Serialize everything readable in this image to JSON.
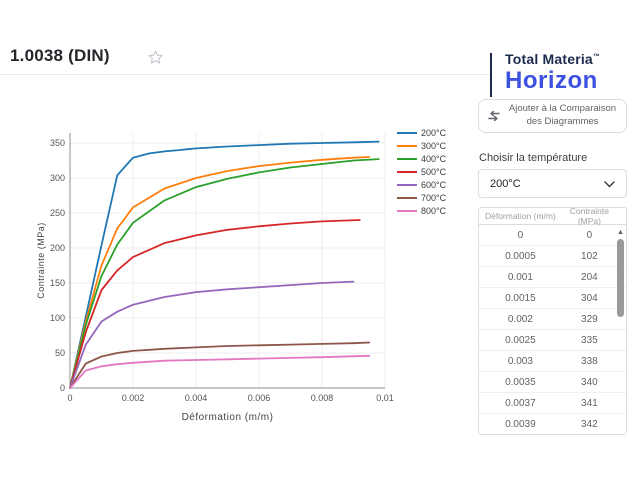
{
  "header": {
    "title": "1.0038 (DIN)"
  },
  "logo": {
    "line1": "Total Materia",
    "tm": "™",
    "line2": "Horizon",
    "navy": "#1b2a4e",
    "blue": "#3d52e0"
  },
  "panel": {
    "compare_button": {
      "label": "Ajouter à la Comparaison des Diagrammes"
    },
    "temperature_label": "Choisir la température",
    "temperature_select": {
      "value": "200°C"
    },
    "table": {
      "columns": [
        "Déformation (m/m)",
        "Contrainte (MPa)"
      ],
      "rows": [
        [
          "0",
          "0"
        ],
        [
          "0.0005",
          "102"
        ],
        [
          "0.001",
          "204"
        ],
        [
          "0.0015",
          "304"
        ],
        [
          "0.002",
          "329"
        ],
        [
          "0.0025",
          "335"
        ],
        [
          "0.003",
          "338"
        ],
        [
          "0.0035",
          "340"
        ],
        [
          "0.0037",
          "341"
        ],
        [
          "0.0039",
          "342"
        ]
      ]
    }
  },
  "chart_data": {
    "type": "line",
    "title": "",
    "xlabel": "Déformation (m/m)",
    "ylabel": "Contrainte (MPa)",
    "xlim": [
      0,
      0.01
    ],
    "ylim": [
      0,
      350
    ],
    "x_ticks": [
      0,
      0.002,
      0.004,
      0.006,
      0.008,
      0.01
    ],
    "x_tick_labels": [
      "0",
      "0.002",
      "0.004",
      "0.006",
      "0.008",
      "0.01"
    ],
    "y_ticks": [
      0,
      50,
      100,
      150,
      200,
      250,
      300,
      350
    ],
    "grid": true,
    "legend_position": "right-top",
    "series": [
      {
        "name": "200°C",
        "color": "#1f77b4",
        "points": [
          [
            0,
            0
          ],
          [
            0.0005,
            102
          ],
          [
            0.001,
            204
          ],
          [
            0.0015,
            304
          ],
          [
            0.002,
            329
          ],
          [
            0.0025,
            335
          ],
          [
            0.003,
            338
          ],
          [
            0.0035,
            340
          ],
          [
            0.0037,
            341
          ],
          [
            0.0039,
            342
          ],
          [
            0.005,
            345
          ],
          [
            0.006,
            347
          ],
          [
            0.007,
            349
          ],
          [
            0.008,
            350
          ],
          [
            0.009,
            351
          ],
          [
            0.0098,
            352
          ]
        ]
      },
      {
        "name": "300°C",
        "color": "#ff7f0e",
        "points": [
          [
            0,
            0
          ],
          [
            0.0005,
            95
          ],
          [
            0.001,
            175
          ],
          [
            0.0015,
            228
          ],
          [
            0.002,
            258
          ],
          [
            0.003,
            285
          ],
          [
            0.004,
            300
          ],
          [
            0.005,
            310
          ],
          [
            0.006,
            317
          ],
          [
            0.007,
            322
          ],
          [
            0.008,
            326
          ],
          [
            0.009,
            329
          ],
          [
            0.0095,
            330
          ]
        ]
      },
      {
        "name": "400°C",
        "color": "#2ca02c",
        "points": [
          [
            0,
            0
          ],
          [
            0.0005,
            90
          ],
          [
            0.001,
            160
          ],
          [
            0.0015,
            205
          ],
          [
            0.002,
            236
          ],
          [
            0.003,
            268
          ],
          [
            0.004,
            287
          ],
          [
            0.005,
            299
          ],
          [
            0.006,
            308
          ],
          [
            0.007,
            315
          ],
          [
            0.008,
            320
          ],
          [
            0.009,
            325
          ],
          [
            0.0098,
            327
          ]
        ]
      },
      {
        "name": "500°C",
        "color": "#d62728",
        "points": [
          [
            0,
            0
          ],
          [
            0.0005,
            80
          ],
          [
            0.001,
            140
          ],
          [
            0.0015,
            168
          ],
          [
            0.002,
            187
          ],
          [
            0.003,
            207
          ],
          [
            0.004,
            218
          ],
          [
            0.005,
            226
          ],
          [
            0.006,
            231
          ],
          [
            0.007,
            235
          ],
          [
            0.008,
            238
          ],
          [
            0.0092,
            240
          ]
        ]
      },
      {
        "name": "600°C",
        "color": "#9467bd",
        "points": [
          [
            0,
            0
          ],
          [
            0.0005,
            62
          ],
          [
            0.001,
            95
          ],
          [
            0.0015,
            109
          ],
          [
            0.002,
            119
          ],
          [
            0.003,
            130
          ],
          [
            0.004,
            137
          ],
          [
            0.005,
            141
          ],
          [
            0.006,
            144
          ],
          [
            0.007,
            147
          ],
          [
            0.008,
            150
          ],
          [
            0.009,
            152
          ]
        ]
      },
      {
        "name": "700°C",
        "color": "#8c564b",
        "points": [
          [
            0,
            0
          ],
          [
            0.0005,
            35
          ],
          [
            0.001,
            45
          ],
          [
            0.0015,
            50
          ],
          [
            0.002,
            53
          ],
          [
            0.003,
            56
          ],
          [
            0.004,
            58
          ],
          [
            0.005,
            60
          ],
          [
            0.006,
            61
          ],
          [
            0.007,
            62
          ],
          [
            0.008,
            63
          ],
          [
            0.009,
            64
          ],
          [
            0.0095,
            65
          ]
        ]
      },
      {
        "name": "800°C",
        "color": "#e377c2",
        "points": [
          [
            0,
            0
          ],
          [
            0.0005,
            25
          ],
          [
            0.001,
            31
          ],
          [
            0.0015,
            34
          ],
          [
            0.002,
            36
          ],
          [
            0.003,
            39
          ],
          [
            0.004,
            40
          ],
          [
            0.005,
            41
          ],
          [
            0.006,
            42
          ],
          [
            0.007,
            43
          ],
          [
            0.008,
            44
          ],
          [
            0.0095,
            46
          ]
        ]
      }
    ]
  }
}
